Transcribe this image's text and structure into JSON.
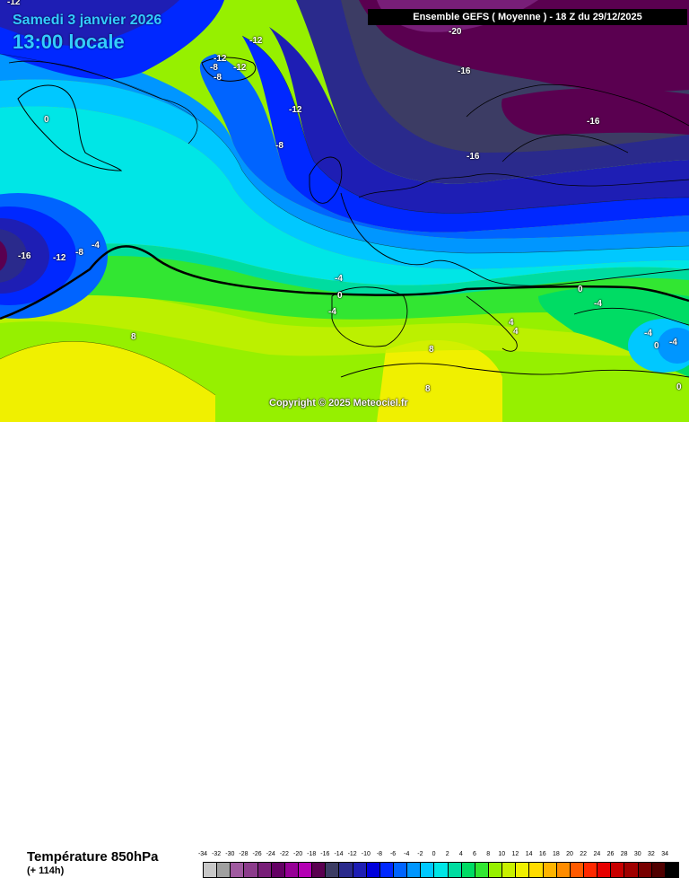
{
  "header": {
    "date": "Samedi 3 janvier 2026",
    "time": "13:00 locale",
    "model": "Ensemble GEFS  ( Moyenne )  -  18 Z du 29/12/2025"
  },
  "copyright": "Copyright © 2025 Meteociel.fr",
  "footer": {
    "parameter": "Température 850hPa",
    "lead": "(+ 114h)"
  },
  "legend": {
    "values": [
      "-34",
      "-32",
      "-30",
      "-28",
      "-26",
      "-24",
      "-22",
      "-20",
      "-18",
      "-16",
      "-14",
      "-12",
      "-10",
      "-8",
      "-6",
      "-4",
      "-2",
      "0",
      "2",
      "4",
      "6",
      "8",
      "10",
      "12",
      "14",
      "16",
      "18",
      "20",
      "22",
      "24",
      "26",
      "28",
      "30",
      "32",
      "34"
    ],
    "colors": [
      "#c8c8c8",
      "#a0a0a0",
      "#a05aa0",
      "#8c3c8c",
      "#781e78",
      "#640064",
      "#960096",
      "#b400b4",
      "#5a0050",
      "#3c3c64",
      "#2a2a8c",
      "#1e1eb4",
      "#0000dc",
      "#0028ff",
      "#0064ff",
      "#0096ff",
      "#00c8ff",
      "#00e6e6",
      "#00dca0",
      "#00dc64",
      "#32e632",
      "#96f000",
      "#c8f000",
      "#f0f000",
      "#ffdc00",
      "#ffb400",
      "#ff8c00",
      "#ff5a00",
      "#ff2800",
      "#e60000",
      "#c80000",
      "#a00000",
      "#780000",
      "#500000",
      "#000000"
    ]
  },
  "isotherms": [
    {
      "text": "-12",
      "color": "white"
    },
    {
      "text": "-20",
      "color": "white"
    },
    {
      "text": "-12",
      "color": "white"
    },
    {
      "text": "-12",
      "color": "white"
    },
    {
      "text": "-8",
      "color": "white"
    },
    {
      "text": "-12",
      "color": "white"
    },
    {
      "text": "-8",
      "color": "white"
    },
    {
      "text": "-16",
      "color": "white"
    },
    {
      "text": "-12",
      "color": "white"
    },
    {
      "text": "-8",
      "color": "white"
    },
    {
      "text": "-16",
      "color": "white"
    },
    {
      "text": "-16",
      "color": "white"
    },
    {
      "text": "0",
      "color": "white"
    },
    {
      "text": "-16",
      "color": "white"
    },
    {
      "text": "-12",
      "color": "white"
    },
    {
      "text": "-8",
      "color": "white"
    },
    {
      "text": "-4",
      "color": "white"
    },
    {
      "text": "-4",
      "color": "white"
    },
    {
      "text": "0",
      "color": "white"
    },
    {
      "text": "-4",
      "color": "white"
    },
    {
      "text": "8",
      "color": "white"
    },
    {
      "text": "8",
      "color": "white"
    },
    {
      "text": "8",
      "color": "white"
    },
    {
      "text": "4",
      "color": "white"
    },
    {
      "text": "4",
      "color": "white"
    },
    {
      "text": "0",
      "color": "white"
    },
    {
      "text": "-4",
      "color": "white"
    },
    {
      "text": "-4",
      "color": "white"
    },
    {
      "text": "-4",
      "color": "white"
    },
    {
      "text": "0",
      "color": "white"
    },
    {
      "text": "0",
      "color": "white"
    }
  ]
}
